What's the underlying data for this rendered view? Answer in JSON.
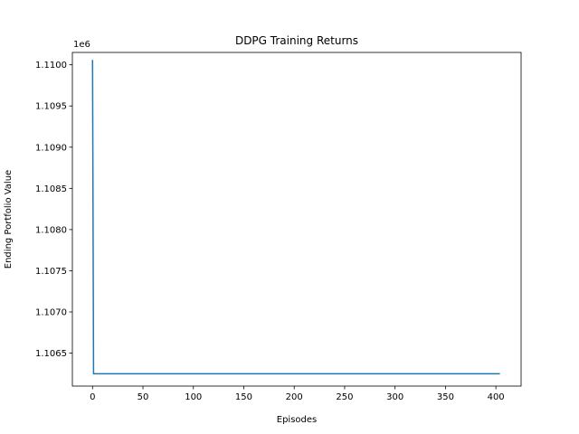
{
  "chart_data": {
    "type": "line",
    "title": "DDPG Training Returns",
    "xlabel": "Episodes",
    "ylabel": "Ending Portfolio Value",
    "y_offset_label": "1e6",
    "xlim": [
      -20,
      425
    ],
    "ylim": [
      1106100,
      1110150
    ],
    "x_ticks": [
      0,
      50,
      100,
      150,
      200,
      250,
      300,
      350,
      400
    ],
    "x_tick_labels": [
      "0",
      "50",
      "100",
      "150",
      "200",
      "250",
      "300",
      "350",
      "400"
    ],
    "y_ticks": [
      1106500,
      1107000,
      1107500,
      1108000,
      1108500,
      1109000,
      1109500,
      1110000
    ],
    "y_tick_labels": [
      "1.1065",
      "1.1070",
      "1.1075",
      "1.1080",
      "1.1085",
      "1.1090",
      "1.1095",
      "1.1100"
    ],
    "grid": false,
    "series": [
      {
        "color": "#1f77b4",
        "x": [
          0,
          1,
          404
        ],
        "y": [
          1110060,
          1106250,
          1106250
        ]
      }
    ]
  }
}
